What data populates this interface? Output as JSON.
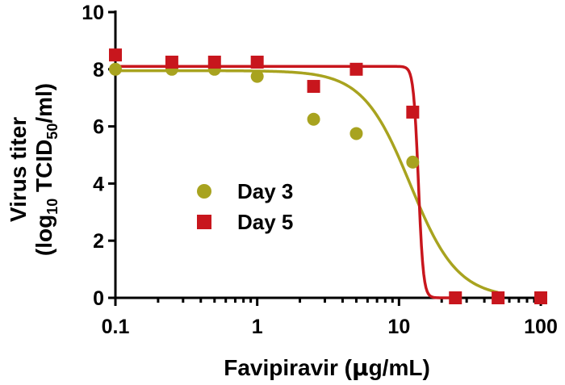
{
  "chart_data": {
    "type": "scatter",
    "xscale": "log",
    "xlim": [
      0.1,
      100
    ],
    "ylim": [
      0,
      10
    ],
    "xticks": [
      0.1,
      1,
      10,
      100
    ],
    "xtick_labels": [
      "0.1",
      "1",
      "10",
      "100"
    ],
    "yticks": [
      0,
      2,
      4,
      6,
      8,
      10
    ],
    "ytick_labels": [
      "0",
      "2",
      "4",
      "6",
      "8",
      "10"
    ],
    "xlabel": "Favipiravir (µg/mL)",
    "xlabel_parts": {
      "pre": "Favipiravir (",
      "mu": "µ",
      "post": "g/mL)"
    },
    "ylabel_line1": "Virus titer",
    "ylabel_line2": {
      "pre": "(log",
      "sub1": "10",
      "mid": " TCID",
      "sub2": "50",
      "post": "/ml)"
    },
    "legend_position": "center-left",
    "series": [
      {
        "name": "Day 3",
        "marker": "circle",
        "color": "#a8a31f",
        "x": [
          0.1,
          0.25,
          0.5,
          1,
          2.5,
          5,
          12.5,
          25,
          50,
          100
        ],
        "y": [
          8.0,
          8.0,
          8.0,
          7.75,
          6.25,
          5.75,
          4.75,
          0,
          0,
          0
        ],
        "fit": {
          "model": "4PL",
          "top": 7.95,
          "bottom": 0,
          "ic50": 12,
          "hill": 2.6,
          "x_range": [
            0.1,
            50
          ]
        }
      },
      {
        "name": "Day 5",
        "marker": "square",
        "color": "#c8161d",
        "x": [
          0.1,
          0.25,
          0.5,
          1,
          2.5,
          5,
          12.5,
          25,
          50,
          100
        ],
        "y": [
          8.5,
          8.25,
          8.25,
          8.25,
          7.4,
          8.0,
          6.5,
          0,
          0,
          0
        ],
        "fit": {
          "model": "4PL",
          "top": 8.1,
          "bottom": 0,
          "ic50": 13.7,
          "hill": 25,
          "x_range": [
            0.1,
            25
          ]
        }
      }
    ]
  }
}
